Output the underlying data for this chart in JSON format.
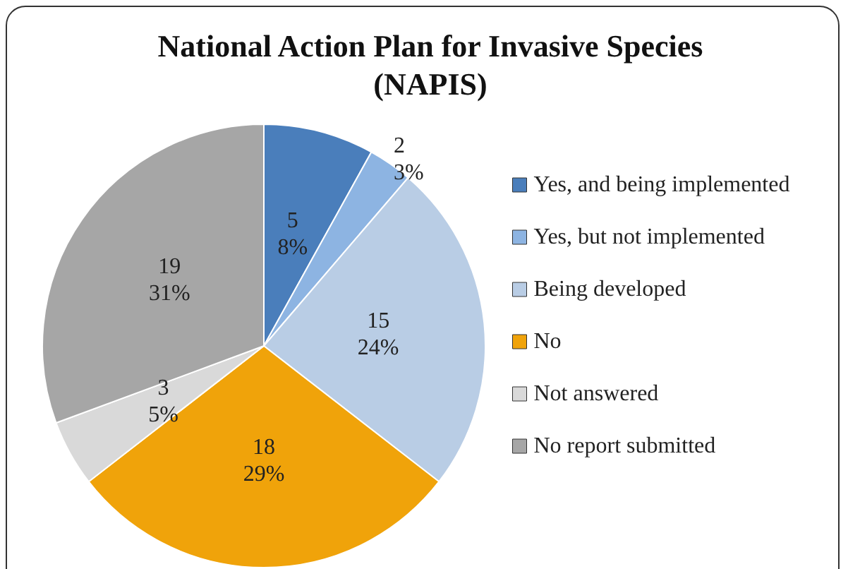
{
  "chart_data": {
    "type": "pie",
    "title": "National Action Plan for Invasive Species\n(NAPIS)",
    "categories": [
      "Yes, and being implemented",
      "Yes, but not implemented",
      "Being developed",
      "No",
      "Not answered",
      "No report submitted"
    ],
    "values": [
      5,
      2,
      15,
      18,
      3,
      19
    ],
    "value_labels": [
      "5\n8%",
      "2\n3%",
      "15\n24%",
      "18\n29%",
      "3\n5%",
      "19\n31%"
    ],
    "colors": [
      "#4a7ebb",
      "#8db4e2",
      "#b9cde5",
      "#f0a30a",
      "#d9d9d9",
      "#a6a6a6"
    ],
    "legend": "right"
  }
}
